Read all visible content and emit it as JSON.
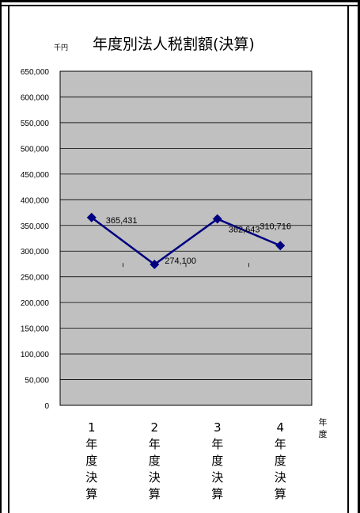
{
  "chart_data": {
    "type": "line",
    "title": "年度別法人税割額(決算)",
    "unit_label": "千円",
    "xlabel": "年度",
    "ylabel": "",
    "categories": [
      "1年度決算",
      "2年度決算",
      "3年度決算",
      "4年度決算"
    ],
    "category_parts": [
      [
        "1",
        "年",
        "度",
        "決",
        "算"
      ],
      [
        "2",
        "年",
        "度",
        "決",
        "算"
      ],
      [
        "3",
        "年",
        "度",
        "決",
        "算"
      ],
      [
        "4",
        "年",
        "度",
        "決",
        "算"
      ]
    ],
    "series": [
      {
        "values": [
          365431,
          274100,
          362643,
          310716
        ]
      }
    ],
    "data_labels": [
      "365,431",
      "274,100",
      "362,643",
      "310,716"
    ],
    "ylim": [
      0,
      650000
    ],
    "yticks": [
      0,
      50000,
      100000,
      150000,
      200000,
      250000,
      300000,
      350000,
      400000,
      450000,
      500000,
      550000,
      600000,
      650000
    ],
    "ytick_labels": [
      "0",
      "50,000",
      "100,000",
      "150,000",
      "200,000",
      "250,000",
      "300,000",
      "350,000",
      "400,000",
      "450,000",
      "500,000",
      "550,000",
      "600,000",
      "650,000"
    ],
    "grid": true,
    "legend": "none",
    "colors": {
      "line": "#000080",
      "plot_bg": "#c0c0c0",
      "grid": "#000000",
      "frame": "#000000"
    }
  }
}
